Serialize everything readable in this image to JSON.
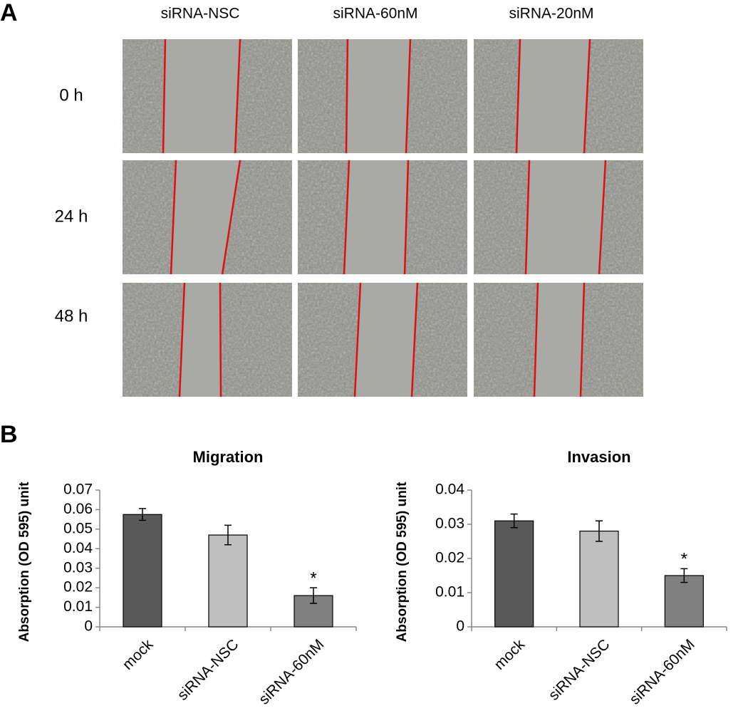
{
  "panel_a": {
    "label": "A",
    "columns": [
      "siRNA-NSC",
      "siRNA-60nM",
      "siRNA-20nM"
    ],
    "rows": [
      "0 h",
      "24 h",
      "48 h"
    ]
  },
  "panel_b": {
    "label": "B"
  },
  "chart_data": [
    {
      "type": "bar",
      "title": "Migration",
      "y_label": "Absorption (OD 595) unit",
      "categories": [
        "mock",
        "siRNA-NSC",
        "siRNA-60nM"
      ],
      "values": [
        0.0575,
        0.047,
        0.016
      ],
      "errors": [
        0.003,
        0.005,
        0.004
      ],
      "colors": [
        "#595959",
        "#bfbfbf",
        "#808080"
      ],
      "annotations": [
        null,
        null,
        "*"
      ],
      "ylim": [
        0,
        0.07
      ],
      "yticks": [
        0,
        0.01,
        0.02,
        0.03,
        0.04,
        0.05,
        0.06,
        0.07
      ],
      "grid": false
    },
    {
      "type": "bar",
      "title": "Invasion",
      "y_label": "Absorption (OD 595) unit",
      "categories": [
        "mock",
        "siRNA-NSC",
        "siRNA-60nM"
      ],
      "values": [
        0.031,
        0.028,
        0.015
      ],
      "errors": [
        0.002,
        0.003,
        0.002
      ],
      "colors": [
        "#595959",
        "#bfbfbf",
        "#808080"
      ],
      "annotations": [
        null,
        null,
        "*"
      ],
      "ylim": [
        0,
        0.04
      ],
      "yticks": [
        0,
        0.01,
        0.02,
        0.03,
        0.04
      ],
      "grid": false
    }
  ]
}
